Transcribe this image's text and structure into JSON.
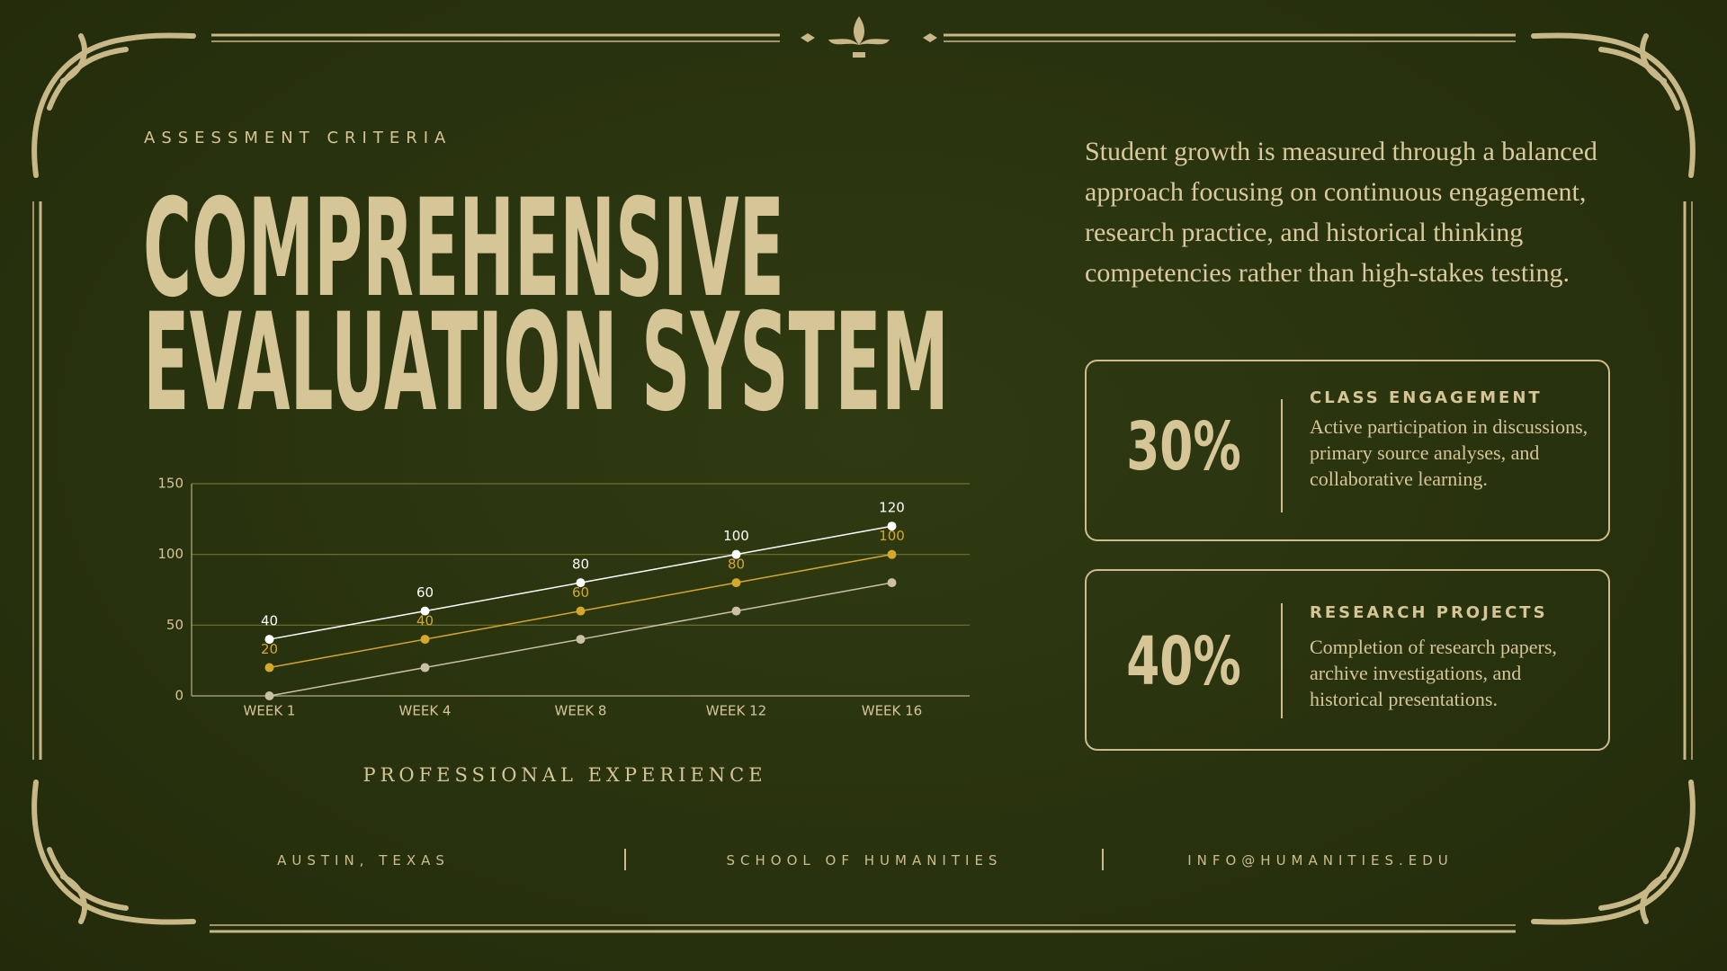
{
  "header": {
    "eyebrow": "ASSESSMENT CRITERIA",
    "title_lines": [
      "COMPREHENSIVE",
      "EVALUATION SYSTEM"
    ]
  },
  "chart_data": {
    "type": "line",
    "caption": "PROFESSIONAL EXPERIENCE",
    "categories": [
      "WEEK 1",
      "WEEK 4",
      "WEEK 8",
      "WEEK 12",
      "WEEK 16"
    ],
    "series": [
      {
        "color": "#ffffff",
        "values": [
          40,
          60,
          80,
          100,
          120
        ],
        "show_labels": true
      },
      {
        "color": "#d4a82c",
        "values": [
          20,
          40,
          60,
          80,
          100
        ],
        "show_labels": true
      },
      {
        "color": "#c9c0a6",
        "values": [
          0,
          20,
          40,
          60,
          80
        ],
        "show_labels": false
      }
    ],
    "ylim": [
      0,
      150
    ],
    "yticks": [
      0,
      50,
      100,
      150
    ],
    "grid": true
  },
  "description": "Student growth is measured through a balanced approach focusing on continuous engagement, research practice, and historical thinking competencies rather than high-stakes testing.",
  "cards": [
    {
      "percent": "30%",
      "title": "CLASS ENGAGEMENT",
      "text": "Active participation in discussions, primary source analyses, and collaborative learning."
    },
    {
      "percent": "40%",
      "title": "RESEARCH PROJECTS",
      "text": "Completion of research papers, archive investigations, and historical presentations."
    }
  ],
  "footer": [
    "AUSTIN, TEXAS",
    "SCHOOL OF HUMANITIES",
    "INFO@HUMANITIES.EDU"
  ]
}
